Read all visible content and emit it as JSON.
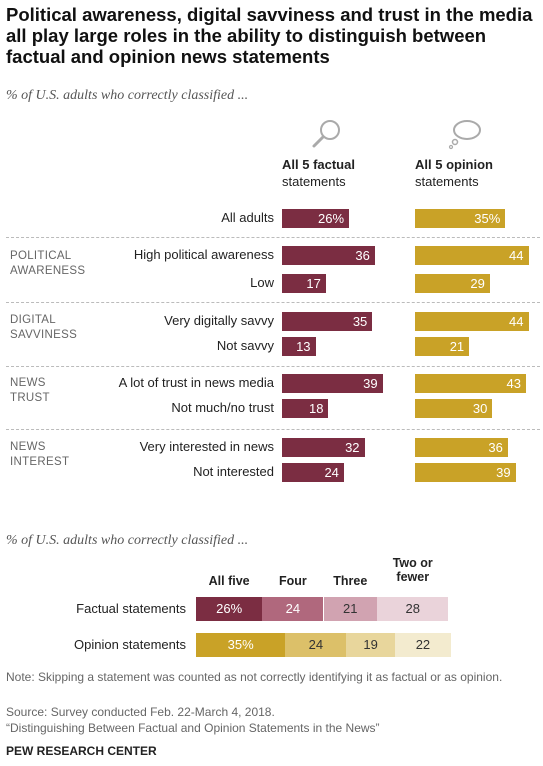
{
  "title": "Political awareness, digital savviness and trust in the media all play large roles in the ability to distinguish between factual and opinion news statements",
  "subtitle1": "% of U.S. adults who correctly classified ...",
  "col_factual": {
    "bold": "All 5 factual",
    "rest": "statements"
  },
  "col_opinion": {
    "bold": "All 5 opinion",
    "rest": "statements"
  },
  "icons": {
    "factual": "magnifier-icon",
    "opinion": "thought-bubble-icon"
  },
  "colors": {
    "factual": "#7b2d42",
    "opinion": "#c9a227"
  },
  "groups": [
    {
      "label": "",
      "rows": [
        0
      ]
    },
    {
      "label": "POLITICAL\nAWARENESS",
      "rows": [
        1,
        2
      ]
    },
    {
      "label": "DIGITAL\nSAVVINESS",
      "rows": [
        3,
        4
      ]
    },
    {
      "label": "NEWS\nTRUST",
      "rows": [
        5,
        6
      ]
    },
    {
      "label": "NEWS\nINTEREST",
      "rows": [
        7,
        8
      ]
    }
  ],
  "subtitle2": "% of U.S. adults who correctly classified ...",
  "stacked": {
    "headers": [
      "All five",
      "Four",
      "Three",
      "Two or fewer"
    ],
    "rows": [
      {
        "label": "Factual statements",
        "values": [
          26,
          24,
          21,
          28
        ],
        "display": [
          "26%",
          "24",
          "21",
          "28"
        ],
        "colors": [
          "#7b2d42",
          "#b0687d",
          "#d1a3b1",
          "#ead3da"
        ]
      },
      {
        "label": "Opinion statements",
        "values": [
          35,
          24,
          19,
          22
        ],
        "display": [
          "35%",
          "24",
          "19",
          "22"
        ],
        "colors": [
          "#c9a227",
          "#dcc069",
          "#e8d69c",
          "#f3ebcf"
        ]
      }
    ]
  },
  "note": "Note: Skipping a statement was counted as not correctly identifying it as factual or as opinion.",
  "source": "Source: Survey conducted Feb. 22-March 4, 2018.",
  "report": "“Distinguishing Between Factual and Opinion Statements in the News”",
  "brand": "PEW RESEARCH CENTER",
  "chart_data": [
    {
      "type": "bar",
      "categories": [
        "All adults",
        "High political awareness",
        "Low",
        "Very digitally savvy",
        "Not savvy",
        "A lot of trust in news media",
        "Not much/no trust",
        "Very interested in news",
        "Not interested"
      ],
      "series": [
        {
          "name": "All 5 factual statements",
          "values": [
            26,
            36,
            17,
            35,
            13,
            39,
            18,
            32,
            24
          ],
          "display": [
            "26%",
            "36",
            "17",
            "35",
            "13",
            "39",
            "18",
            "32",
            "24"
          ]
        },
        {
          "name": "All 5 opinion statements",
          "values": [
            35,
            44,
            29,
            44,
            21,
            43,
            30,
            36,
            39
          ],
          "display": [
            "35%",
            "44",
            "29",
            "44",
            "21",
            "43",
            "30",
            "36",
            "39"
          ]
        }
      ]
    },
    {
      "type": "bar",
      "stacked": true,
      "categories": [
        "Factual statements",
        "Opinion statements"
      ],
      "series": [
        {
          "name": "All five",
          "values": [
            26,
            35
          ]
        },
        {
          "name": "Four",
          "values": [
            24,
            24
          ]
        },
        {
          "name": "Three",
          "values": [
            21,
            19
          ]
        },
        {
          "name": "Two or fewer",
          "values": [
            28,
            22
          ]
        }
      ]
    }
  ]
}
